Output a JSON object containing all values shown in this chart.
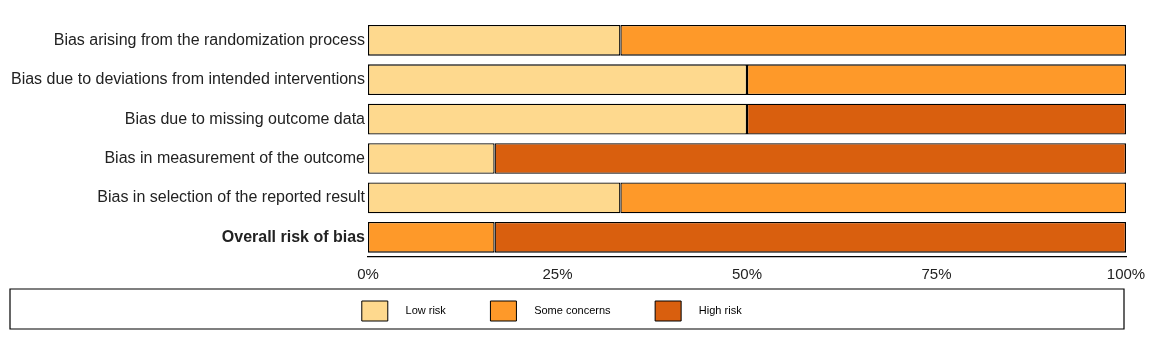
{
  "chart_data": {
    "type": "bar",
    "orientation": "horizontal",
    "stacked": true,
    "legend": "bottom",
    "grid": false,
    "categories": [
      "Bias arising from the randomization process",
      "Bias due to deviations from intended interventions",
      "Bias due to missing outcome data",
      "Bias in measurement of the outcome",
      "Bias in selection of the reported result",
      "Overall risk of bias"
    ],
    "series": [
      {
        "name": "Low risk",
        "color": "#fed98e",
        "values": [
          33.3,
          50,
          50,
          16.7,
          33.3,
          null
        ]
      },
      {
        "name": "Some concerns",
        "color": "#fe9929",
        "values": [
          66.7,
          50,
          null,
          null,
          66.7,
          16.7
        ]
      },
      {
        "name": "High risk",
        "color": "#d95f0e",
        "values": [
          null,
          null,
          50,
          83.3,
          null,
          83.3
        ]
      }
    ],
    "xlim": [
      0,
      100
    ],
    "xticks": [
      {
        "value": 0,
        "label": "0%"
      },
      {
        "value": 25,
        "label": "25%"
      },
      {
        "value": 50,
        "label": "50%"
      },
      {
        "value": 75,
        "label": "75%"
      },
      {
        "value": 100,
        "label": "100%"
      }
    ]
  }
}
